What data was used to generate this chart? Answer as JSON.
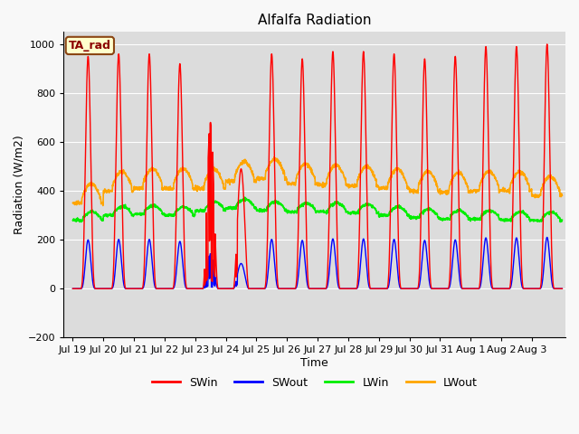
{
  "title": "Alfalfa Radiation",
  "xlabel": "Time",
  "ylabel": "Radiation (W/m2)",
  "ylim": [
    -200,
    1050
  ],
  "background_color": "#dcdcdc",
  "grid_color": "#ffffff",
  "annotation_text": "TA_rad",
  "annotation_bg": "#ffffcc",
  "annotation_border": "#8b4513",
  "annotation_text_color": "#8b0000",
  "line_colors": {
    "SWin": "#ff0000",
    "SWout": "#0000ff",
    "LWin": "#00ee00",
    "LWout": "#ffa500"
  },
  "line_widths": {
    "SWin": 1.0,
    "SWout": 1.0,
    "LWin": 1.2,
    "LWout": 1.2
  },
  "tick_labels": [
    "Jul 19",
    "Jul 20",
    "Jul 21",
    "Jul 22",
    "Jul 23",
    "Jul 24",
    "Jul 25",
    "Jul 26",
    "Jul 27",
    "Jul 28",
    "Jul 29",
    "Jul 30",
    "Jul 31",
    "Aug 1",
    "Aug 2",
    "Aug 3"
  ],
  "yticks": [
    -200,
    0,
    200,
    400,
    600,
    800,
    1000
  ],
  "num_days": 16,
  "pts_per_day": 144,
  "fig_width": 6.4,
  "fig_height": 4.8,
  "dpi": 100
}
